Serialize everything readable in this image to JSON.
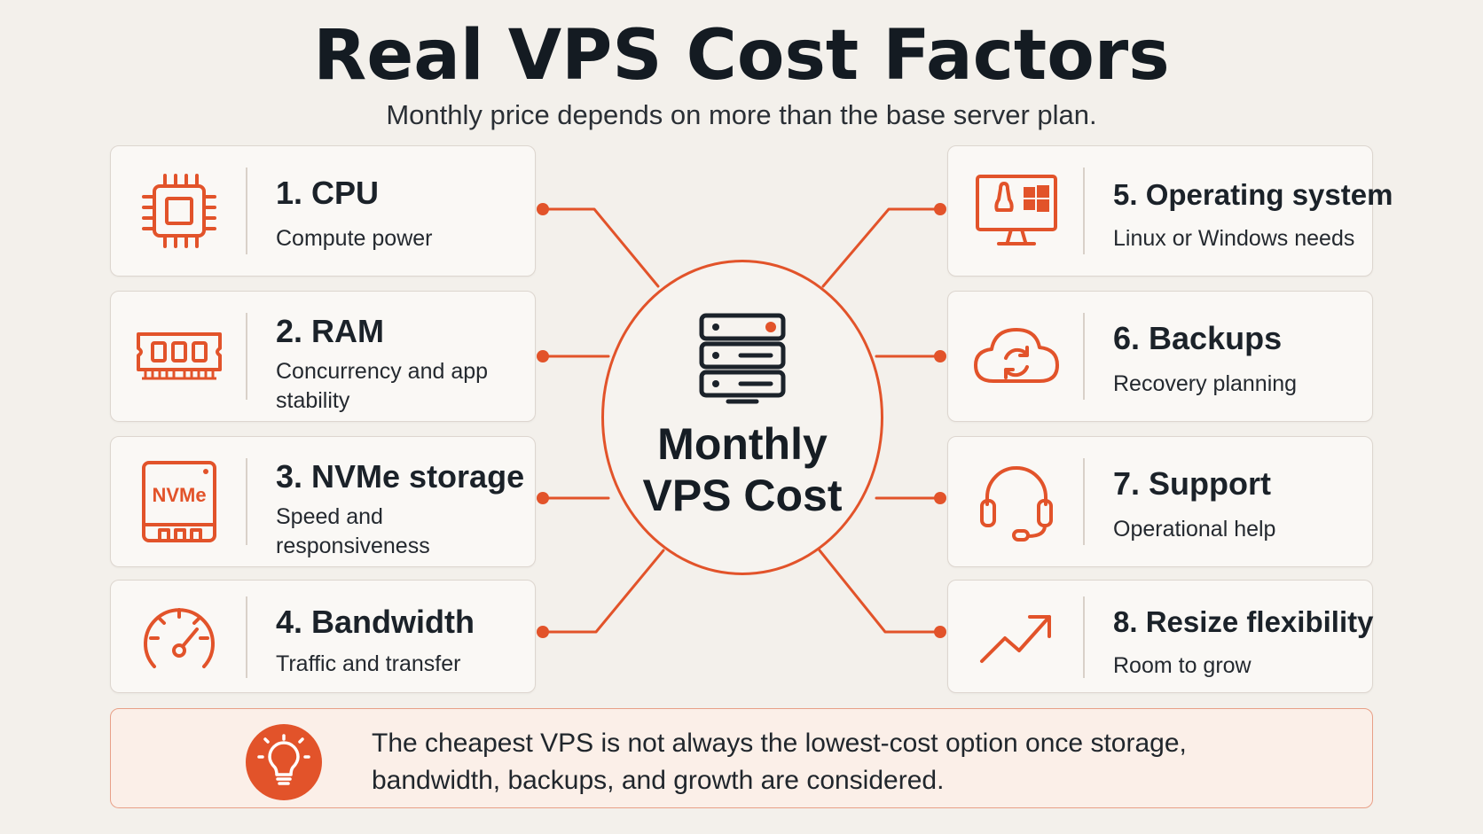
{
  "header": {
    "title": "Real VPS Cost Factors",
    "subtitle": "Monthly price depends on more than the base server plan."
  },
  "hub": {
    "label_line1": "Monthly",
    "label_line2": "VPS Cost",
    "icon": "server-icon"
  },
  "factors": [
    {
      "title": "1. CPU",
      "desc": "Compute power",
      "icon": "cpu-icon"
    },
    {
      "title": "2. RAM",
      "desc": "Concurrency and app stability",
      "icon": "ram-icon"
    },
    {
      "title": "3. NVMe storage",
      "desc": "Speed and responsiveness",
      "icon": "nvme-icon",
      "icon_text": "NVMe"
    },
    {
      "title": "4. Bandwidth",
      "desc": "Traffic and transfer",
      "icon": "speedometer-icon"
    },
    {
      "title": "5. Operating system",
      "desc": "Linux or Windows needs",
      "icon": "monitor-os-icon"
    },
    {
      "title": "6. Backups",
      "desc": "Recovery planning",
      "icon": "cloud-sync-icon"
    },
    {
      "title": "7. Support",
      "desc": "Operational help",
      "icon": "headset-icon"
    },
    {
      "title": "8. Resize flexibility",
      "desc": "Room to grow",
      "icon": "trend-up-icon"
    }
  ],
  "note": {
    "text": "The cheapest VPS is not always the lowest-cost option once storage, bandwidth, backups, and growth are considered.",
    "icon": "lightbulb-icon"
  },
  "colors": {
    "accent": "#e2532a",
    "background": "#f3f0eb",
    "card": "#faf8f5",
    "note_background": "#fbefe8"
  }
}
